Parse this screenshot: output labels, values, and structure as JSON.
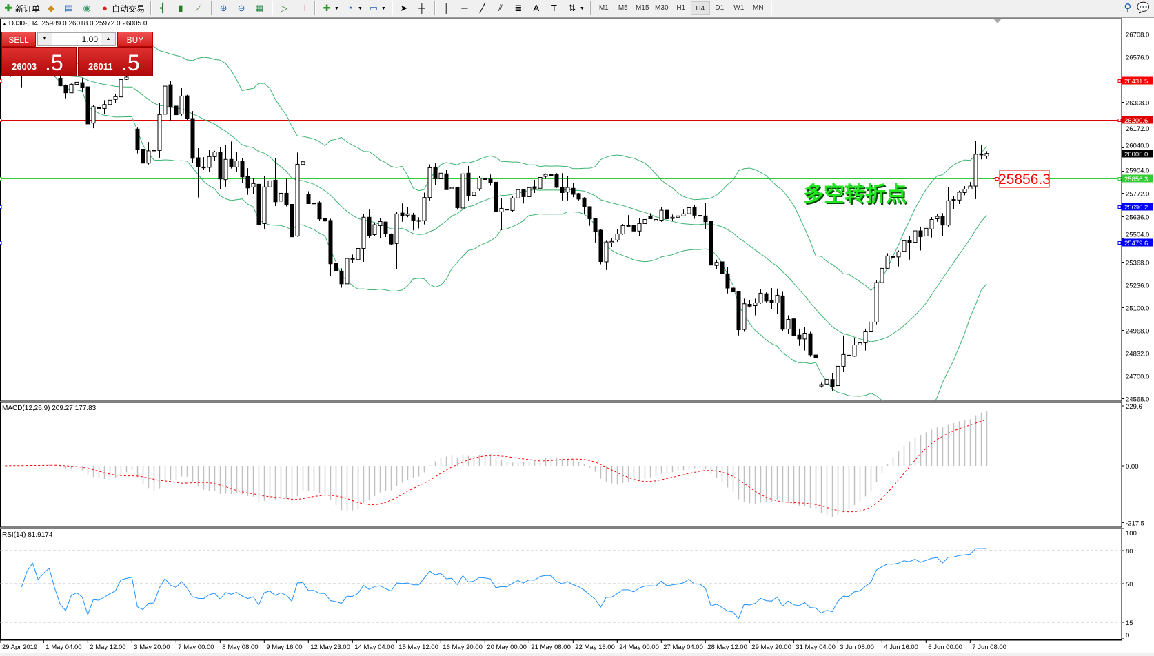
{
  "toolbar": {
    "new_order": {
      "label": "新订单",
      "icon": "new-order-icon"
    },
    "auto_trading": {
      "label": "自动交易",
      "icon": "auto-trading-icon"
    },
    "icons": [
      "market-watch-icon",
      "navigator-icon",
      "signals-icon",
      "bar-chart-icon",
      "candlestick-chart-icon",
      "line-chart-icon",
      "zoom-in-icon",
      "zoom-out-icon",
      "tile-windows-icon",
      "auto-scroll-icon",
      "chart-shift-icon",
      "indicators-icon",
      "periods-icon",
      "templates-icon",
      "cursor-icon",
      "crosshair-icon",
      "vertical-line-icon",
      "horizontal-line-icon",
      "trendline-icon",
      "equidistant-channel-icon",
      "fibonacci-icon",
      "text-icon",
      "text-label-icon",
      "arrows-icon"
    ],
    "timeframes": [
      "M1",
      "M5",
      "M15",
      "M30",
      "H1",
      "H4",
      "D1",
      "W1",
      "MN"
    ],
    "active_timeframe": "H4",
    "right_icons": [
      "search-icon",
      "chat-icon"
    ]
  },
  "header": {
    "symbol": "DJ30-,H4",
    "ohlc": "25989.0 26018.0 25972.0 26005.0"
  },
  "trade_panel": {
    "sell_label": "SELL",
    "buy_label": "BUY",
    "lot": "1.00",
    "sell_price_main": "26003",
    "sell_price_frac": ".5",
    "buy_price_main": "26011",
    "buy_price_frac": ".5"
  },
  "annotation": {
    "text": "多空转折点",
    "price_label": "25856.3",
    "text_color": "#22e622",
    "label_color": "#ff0000"
  },
  "indicators": {
    "macd_title": "MACD(12,26,9) 209.27 177.83",
    "rsi_title": "RSI(14) 81.9174"
  },
  "chart_data": {
    "type": "candlestick",
    "symbol": "DJ30-",
    "timeframe": "H4",
    "ohlc_fields": [
      "open",
      "high",
      "low",
      "close"
    ],
    "candles": [
      [
        26480,
        26500,
        26460,
        26470
      ],
      [
        26470,
        26495,
        26455,
        26485
      ],
      [
        26485,
        26500,
        26465,
        26475
      ],
      [
        26475,
        26490,
        26393,
        26468
      ],
      [
        26468,
        26490,
        26460,
        26480
      ],
      [
        26480,
        26500,
        26465,
        26490
      ],
      [
        26490,
        26510,
        26470,
        26475
      ],
      [
        26475,
        26495,
        26462,
        26485
      ],
      [
        26485,
        26505,
        26470,
        26495
      ],
      [
        26495,
        26505,
        26455,
        26460
      ],
      [
        26447,
        26460,
        26400,
        26402
      ],
      [
        26404,
        26410,
        26329,
        26361
      ],
      [
        26361,
        26415,
        26360,
        26411
      ],
      [
        26410,
        26448,
        26377,
        26423
      ],
      [
        26420,
        26448,
        26369,
        26394
      ],
      [
        26396,
        26427,
        26146,
        26178
      ],
      [
        26183,
        26288,
        26153,
        26279
      ],
      [
        26277,
        26299,
        26234,
        26269
      ],
      [
        26269,
        26318,
        26238,
        26292
      ],
      [
        26292,
        26337,
        26275,
        26318
      ],
      [
        26322,
        26356,
        26302,
        26338
      ],
      [
        26337,
        26447,
        26313,
        26439
      ],
      [
        26440,
        26480,
        26437,
        26453
      ],
      [
        26470,
        26490,
        26460,
        26465
      ],
      [
        26148,
        26157,
        26005,
        26026
      ],
      [
        26030,
        26075,
        25928,
        25948
      ],
      [
        25948,
        26072,
        25940,
        26020
      ],
      [
        26022,
        26067,
        25955,
        26024
      ],
      [
        26022,
        26299,
        25980,
        26233
      ],
      [
        26235,
        26441,
        26215,
        26400
      ],
      [
        26408,
        26431,
        26199,
        26276
      ],
      [
        26283,
        26292,
        26211,
        26232
      ],
      [
        26236,
        26388,
        26227,
        26342
      ],
      [
        26343,
        26349,
        26202,
        26211
      ],
      [
        26210,
        26254,
        25951,
        25976
      ],
      [
        25979,
        26036,
        25746,
        25928
      ],
      [
        25925,
        25983,
        25908,
        25920
      ],
      [
        25923,
        26024,
        25899,
        25986
      ],
      [
        25986,
        26021,
        25959,
        26014
      ],
      [
        26011,
        26042,
        25794,
        25855
      ],
      [
        25851,
        26053,
        25810,
        25970
      ],
      [
        25970,
        26075,
        25916,
        25928
      ],
      [
        25925,
        26015,
        25899,
        25961
      ],
      [
        25957,
        25978,
        25831,
        25867
      ],
      [
        25872,
        25918,
        25762,
        25802
      ],
      [
        25808,
        25862,
        25765,
        25828
      ],
      [
        25824,
        25844,
        25499,
        25588
      ],
      [
        25593,
        25871,
        25563,
        25808
      ],
      [
        25808,
        25867,
        25754,
        25844
      ],
      [
        25848,
        25975,
        25696,
        25721
      ],
      [
        25725,
        25848,
        25646,
        25771
      ],
      [
        25771,
        25856,
        25694,
        25705
      ],
      [
        25706,
        25764,
        25462,
        25515
      ],
      [
        25520,
        26010,
        25515,
        25941
      ],
      [
        25940,
        25967,
        25918,
        25956
      ],
      [
        25764,
        25783,
        25708,
        25710
      ],
      [
        25712,
        25721,
        25673,
        25713
      ],
      [
        25716,
        25724,
        25611,
        25620
      ],
      [
        25623,
        25691,
        25594,
        25608
      ],
      [
        25611,
        25621,
        25287,
        25357
      ],
      [
        25360,
        25400,
        25211,
        25316
      ],
      [
        25314,
        25330,
        25216,
        25239
      ],
      [
        25239,
        25395,
        25239,
        25388
      ],
      [
        25385,
        25411,
        25361,
        25387
      ],
      [
        25381,
        25469,
        25341,
        25447
      ],
      [
        25447,
        25651,
        25368,
        25630
      ],
      [
        25630,
        25675,
        25509,
        25523
      ],
      [
        25528,
        25600,
        25519,
        25586
      ],
      [
        25581,
        25624,
        25509,
        25605
      ],
      [
        25602,
        25605,
        25513,
        25532
      ],
      [
        25532,
        25535,
        25469,
        25473
      ],
      [
        25476,
        25662,
        25324,
        25650
      ],
      [
        25655,
        25711,
        25604,
        25638
      ],
      [
        25642,
        25689,
        25630,
        25650
      ],
      [
        25642,
        25656,
        25553,
        25609
      ],
      [
        25611,
        25630,
        25565,
        25610
      ],
      [
        25610,
        25775,
        25588,
        25746
      ],
      [
        25746,
        25941,
        25729,
        25921
      ],
      [
        25925,
        25951,
        25820,
        25856
      ],
      [
        25856,
        25894,
        25851,
        25889
      ],
      [
        25885,
        25910,
        25792,
        25792
      ],
      [
        25797,
        25810,
        25763,
        25805
      ],
      [
        25805,
        25810,
        25675,
        25686
      ],
      [
        25684,
        25948,
        25624,
        25885
      ],
      [
        25889,
        25931,
        25728,
        25755
      ],
      [
        25759,
        25789,
        25746,
        25778
      ],
      [
        25797,
        25874,
        25786,
        25860
      ],
      [
        25860,
        25897,
        25818,
        25852
      ],
      [
        25854,
        25881,
        25816,
        25835
      ],
      [
        25836,
        25870,
        25631,
        25662
      ],
      [
        25662,
        25743,
        25554,
        25682
      ],
      [
        25675,
        25743,
        25586,
        25677
      ],
      [
        25670,
        25754,
        25662,
        25743
      ],
      [
        25743,
        25813,
        25719,
        25792
      ],
      [
        25792,
        25797,
        25711,
        25751
      ],
      [
        25751,
        25813,
        25727,
        25804
      ],
      [
        25809,
        25850,
        25773,
        25800
      ],
      [
        25800,
        25894,
        25789,
        25864
      ],
      [
        25870,
        25887,
        25854,
        25882
      ],
      [
        25880,
        25903,
        25832,
        25880
      ],
      [
        25883,
        25889,
        25802,
        25806
      ],
      [
        25805,
        25889,
        25729,
        25775
      ],
      [
        25778,
        25874,
        25729,
        25805
      ],
      [
        25800,
        25832,
        25748,
        25765
      ],
      [
        25769,
        25773,
        25729,
        25737
      ],
      [
        25743,
        25748,
        25651,
        25692
      ],
      [
        25692,
        25694,
        25580,
        25621
      ],
      [
        25624,
        25624,
        25482,
        25548
      ],
      [
        25554,
        25559,
        25354,
        25370
      ],
      [
        25368,
        25492,
        25320,
        25485
      ],
      [
        25481,
        25508,
        25454,
        25488
      ],
      [
        25496,
        25559,
        25486,
        25532
      ],
      [
        25532,
        25590,
        25527,
        25581
      ],
      [
        25580,
        25643,
        25578,
        25581
      ],
      [
        25581,
        25665,
        25489,
        25549
      ],
      [
        25549,
        25627,
        25519,
        25593
      ],
      [
        25593,
        25621,
        25592,
        25617
      ],
      [
        25635,
        25654,
        25621,
        25621
      ],
      [
        25609,
        25651,
        25580,
        25617
      ],
      [
        25613,
        25689,
        25604,
        25671
      ],
      [
        25671,
        25675,
        25605,
        25621
      ],
      [
        25623,
        25646,
        25608,
        25630
      ],
      [
        25630,
        25643,
        25627,
        25638
      ],
      [
        25638,
        25675,
        25638,
        25650
      ],
      [
        25651,
        25694,
        25640,
        25686
      ],
      [
        25688,
        25702,
        25621,
        25642
      ],
      [
        25641,
        25651,
        25563,
        25640
      ],
      [
        25638,
        25716,
        25559,
        25604
      ],
      [
        25605,
        25635,
        25343,
        25349
      ],
      [
        25347,
        25381,
        25325,
        25365
      ],
      [
        25368,
        25370,
        25260,
        25298
      ],
      [
        25298,
        25338,
        25183,
        25214
      ],
      [
        25214,
        25241,
        25158,
        25192
      ],
      [
        25192,
        25195,
        24936,
        24969
      ],
      [
        24971,
        25152,
        24957,
        25122
      ],
      [
        25119,
        25144,
        25100,
        25108
      ],
      [
        25111,
        25152,
        25054,
        25127
      ],
      [
        25127,
        25206,
        25122,
        25184
      ],
      [
        25181,
        25189,
        25130,
        25138
      ],
      [
        25141,
        25214,
        25090,
        25127
      ],
      [
        25127,
        25211,
        25061,
        25172
      ],
      [
        25168,
        25192,
        24960,
        24972
      ],
      [
        24973,
        25054,
        24946,
        25030
      ],
      [
        25033,
        25036,
        24936,
        24936
      ],
      [
        24938,
        24976,
        24875,
        24915
      ],
      [
        24915,
        24987,
        24847,
        24949
      ],
      [
        24946,
        24957,
        24811,
        24822
      ],
      [
        24821,
        24833,
        24787,
        24806
      ],
      [
        24639,
        24658,
        24630,
        24647
      ],
      [
        24650,
        24706,
        24632,
        24677
      ],
      [
        24677,
        24713,
        24609,
        24636
      ],
      [
        24641,
        24771,
        24632,
        24755
      ],
      [
        24755,
        24936,
        24720,
        24824
      ],
      [
        24818,
        24919,
        24686,
        24820
      ],
      [
        24814,
        24922,
        24811,
        24880
      ],
      [
        24880,
        24925,
        24821,
        24892
      ],
      [
        24892,
        24976,
        24847,
        24957
      ],
      [
        24957,
        25046,
        24922,
        25014
      ],
      [
        25014,
        25262,
        25001,
        25246
      ],
      [
        25246,
        25343,
        25203,
        25330
      ],
      [
        25330,
        25419,
        25327,
        25403
      ],
      [
        25397,
        25422,
        25368,
        25399
      ],
      [
        25397,
        25435,
        25341,
        25427
      ],
      [
        25430,
        25522,
        25408,
        25492
      ],
      [
        25492,
        25520,
        25381,
        25481
      ],
      [
        25483,
        25554,
        25442,
        25550
      ],
      [
        25550,
        25575,
        25435,
        25516
      ],
      [
        25520,
        25565,
        25519,
        25565
      ],
      [
        25561,
        25631,
        25511,
        25617
      ],
      [
        25621,
        25648,
        25604,
        25635
      ],
      [
        25634,
        25654,
        25519,
        25584
      ],
      [
        25584,
        25805,
        25575,
        25727
      ],
      [
        25733,
        25756,
        25678,
        25734
      ],
      [
        25731,
        25786,
        25708,
        25777
      ],
      [
        25775,
        25813,
        25759,
        25795
      ],
      [
        25795,
        25837,
        25794,
        25813
      ],
      [
        25813,
        26080,
        25737,
        26000
      ],
      [
        25999,
        26056,
        25970,
        26000
      ],
      [
        25989,
        26018,
        25972,
        26005
      ]
    ],
    "price_axis": {
      "range": [
        24568.0,
        26708.0
      ],
      "ticks": [
        "26708.0",
        "26576.0",
        "26308.0",
        "26172.0",
        "26040.0",
        "25904.0",
        "25772.0",
        "25636.0",
        "25504.0",
        "25368.0",
        "25236.0",
        "25100.0",
        "24968.0",
        "24832.0",
        "24700.0",
        "24568.0"
      ]
    },
    "time_labels": [
      "29 Apr 2019",
      "1 May 04:00",
      "2 May 12:00",
      "3 May 20:00",
      "7 May 00:00",
      "8 May 08:00",
      "9 May 16:00",
      "12 May 23:00",
      "14 May 04:00",
      "15 May 12:00",
      "16 May 20:00",
      "20 May 00:00",
      "21 May 08:00",
      "22 May 16:00",
      "24 May 00:00",
      "27 May 04:00",
      "28 May 12:00",
      "29 May 20:00",
      "31 May 04:00",
      "3 Jun 08:00",
      "4 Jun 16:00",
      "6 Jun 00:00",
      "7 Jun 08:00"
    ],
    "horizontal_lines": [
      {
        "price": 26431.5,
        "label": "26431.5",
        "color": "#ff0000"
      },
      {
        "price": 26200.6,
        "label": "26200.6",
        "color": "#e00000"
      },
      {
        "price": 26005.0,
        "label": "26005.0",
        "color": "#c0c0c0",
        "label_bg": "#000000"
      },
      {
        "price": 25856.3,
        "label": "25856.3",
        "color": "#32cd32"
      },
      {
        "price": 25690.2,
        "label": "25690.2",
        "color": "#0000ff"
      },
      {
        "price": 25479.6,
        "label": "25479.6",
        "color": "#0000ff"
      }
    ],
    "bollinger": {
      "period": 20,
      "deviation": 2,
      "color": "#3cb371"
    },
    "macd": {
      "fast": 12,
      "slow": 26,
      "signal": 9,
      "axis_labels": [
        "229.6",
        "0.00",
        "-217.5"
      ],
      "range": [
        -217.5,
        229.6
      ],
      "histogram_color": "#c0c0c0",
      "signal_color": "#ff0000"
    },
    "rsi": {
      "period": 14,
      "axis_labels": [
        "100",
        "80",
        "50",
        "15",
        "0"
      ],
      "levels": [
        80,
        50,
        15
      ],
      "range": [
        0,
        100
      ],
      "color": "#1e90ff"
    },
    "bull_color": "#ffffff",
    "bear_color": "#000000"
  }
}
